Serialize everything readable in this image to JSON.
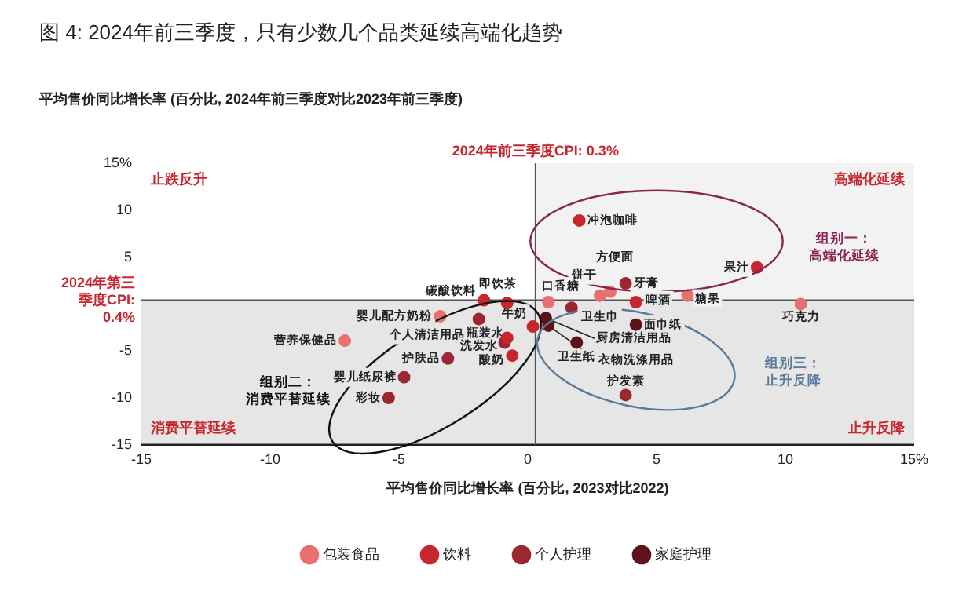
{
  "chart_data": {
    "type": "scatter",
    "title": "图 4: 2024年前三季度，只有少数几个品类延续高端化趋势",
    "ylabel": "平均售价同比增长率 (百分比, 2024年前三季度对比2023年前三季度)",
    "xlabel": "平均售价同比增长率 (百分比, 2023对比2022)",
    "xlim": [
      -15,
      15
    ],
    "xticks": [
      -15,
      -10,
      -5,
      0,
      5,
      10,
      {
        "value": 15,
        "label": "15%"
      }
    ],
    "ylim": [
      -15,
      15
    ],
    "yticks": [
      -15,
      -10,
      -5,
      {
        "value": 0,
        "label": null
      },
      5,
      10,
      {
        "value": 15,
        "label": "15%"
      }
    ],
    "grid": false,
    "legend": "bottom",
    "marker": "circle",
    "series": [
      {
        "name": "包装食品",
        "color": "#e8706f",
        "x": [
          -3.4,
          -7.1,
          3.2,
          2.8,
          6.2,
          0.8,
          10.6
        ],
        "values": [
          -1.3,
          -3.9,
          1.3,
          0.9,
          0.9,
          0.2,
          0.0
        ]
      },
      {
        "name": "饮料",
        "color": "#c8262e",
        "x": [
          -1.7,
          -0.8,
          0.2,
          -0.8,
          -0.6,
          2.0,
          8.9,
          4.2
        ],
        "values": [
          0.4,
          0.1,
          -2.4,
          -3.6,
          -5.5,
          8.9,
          3.9,
          0.2
        ]
      },
      {
        "name": "个人护理",
        "color": "#9b2830",
        "x": [
          -1.9,
          -0.9,
          -3.1,
          -4.8,
          -5.4,
          3.8,
          1.7,
          3.8
        ],
        "values": [
          -1.6,
          -4.1,
          -5.8,
          -7.8,
          -10.0,
          2.2,
          -0.4,
          -9.7
        ]
      },
      {
        "name": "家庭护理",
        "color": "#5c1419",
        "x": [
          0.7,
          0.8,
          1.9,
          4.2
        ],
        "values": [
          -1.5,
          -2.3,
          -4.1,
          -2.2
        ]
      }
    ],
    "ref_lines": [
      {
        "axis": "x",
        "value": 0.3,
        "label": "2024年前三季度CPI: 0.3%",
        "color": "#555555"
      },
      {
        "axis": "y",
        "value": 0.4,
        "label": "2024年第三季度CPI: 0.4%",
        "color": "#555555"
      }
    ],
    "bands": [
      {
        "axis": "x",
        "from": 0.3,
        "to": 15,
        "color": "#f2f2f2"
      },
      {
        "axis": "y",
        "from": -15,
        "to": 0.4,
        "color": "#e6e6e6"
      }
    ],
    "annotations": [
      "止跌反升",
      "高端化延续",
      "消费平替延续",
      "止升反降",
      "组别一：高端化延续",
      "组别二：消费平替延续",
      "组别三：止升反降",
      {
        "text": "婴儿配方奶粉",
        "x": -3.4,
        "y": -1.3
      },
      {
        "text": "营养保健品",
        "x": -7.1,
        "y": -3.9
      },
      {
        "text": "方便面",
        "x": 3.2,
        "y": 1.3
      },
      {
        "text": "饼干",
        "x": 2.8,
        "y": 0.9
      },
      {
        "text": "糖果",
        "x": 6.2,
        "y": 0.9
      },
      {
        "text": "口香糖",
        "x": 0.8,
        "y": 0.2
      },
      {
        "text": "巧克力",
        "x": 10.6,
        "y": 0.0
      },
      {
        "text": "碳酸饮料",
        "x": -1.7,
        "y": 0.4
      },
      {
        "text": "即饮茶",
        "x": -0.8,
        "y": 0.1
      },
      {
        "text": "牛奶",
        "x": 0.2,
        "y": -2.4
      },
      {
        "text": "瓶装水",
        "x": -0.8,
        "y": -3.6
      },
      {
        "text": "酸奶",
        "x": -0.6,
        "y": -5.5
      },
      {
        "text": "冲泡咖啡",
        "x": 2.0,
        "y": 8.9
      },
      {
        "text": "果汁",
        "x": 8.9,
        "y": 3.9
      },
      {
        "text": "啤酒",
        "x": 4.2,
        "y": 0.2
      },
      {
        "text": "个人清洁用品",
        "x": -1.9,
        "y": -1.6
      },
      {
        "text": "洗发水",
        "x": -0.9,
        "y": -4.1
      },
      {
        "text": "护肤品",
        "x": -3.1,
        "y": -5.8
      },
      {
        "text": "婴儿纸尿裤",
        "x": -4.8,
        "y": -7.8
      },
      {
        "text": "彩妆",
        "x": -5.4,
        "y": -10.0
      },
      {
        "text": "牙膏",
        "x": 3.8,
        "y": 2.2
      },
      {
        "text": "卫生巾",
        "x": 1.7,
        "y": -0.4
      },
      {
        "text": "护发素",
        "x": 3.8,
        "y": -9.7
      },
      {
        "text": "厨房清洁用品",
        "x": 0.7,
        "y": -1.5
      },
      {
        "text": "衣物洗涤用品",
        "x": 0.8,
        "y": -2.3
      },
      {
        "text": "卫生纸",
        "x": 1.9,
        "y": -4.1
      },
      {
        "text": "面巾纸",
        "x": 4.2,
        "y": -2.2
      }
    ]
  }
}
